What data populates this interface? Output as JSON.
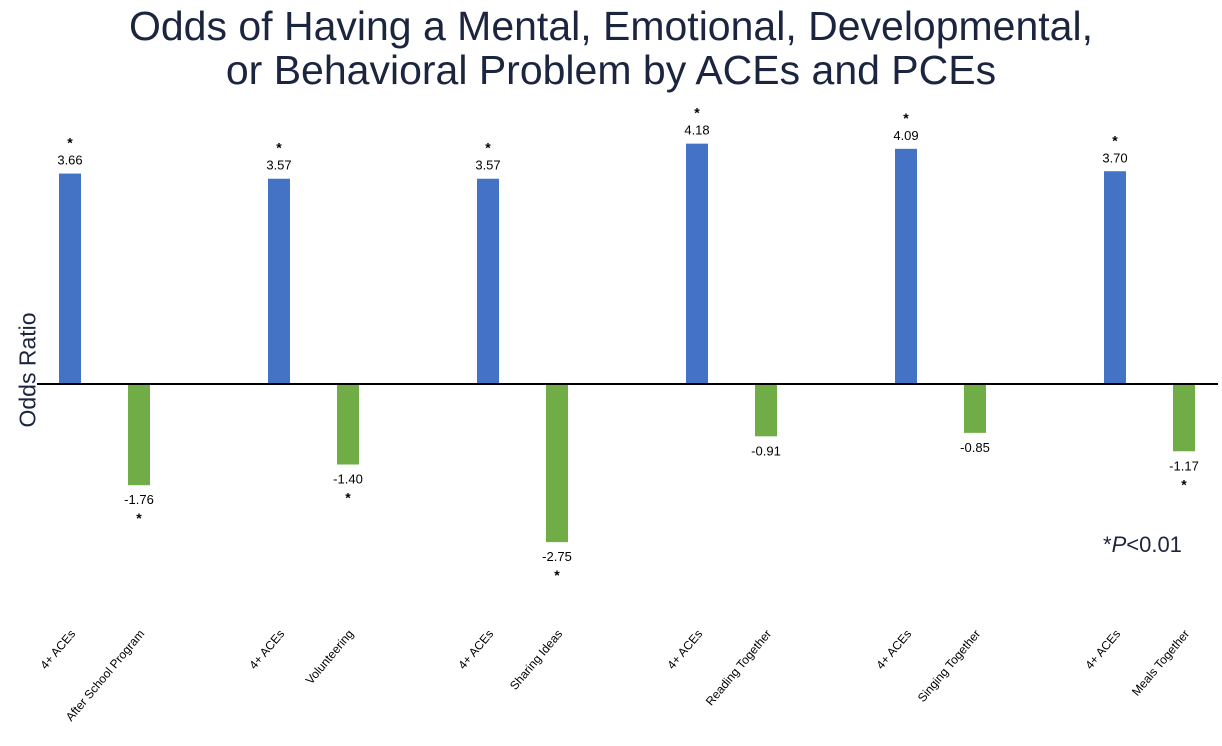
{
  "title": {
    "line1": "Odds of Having a Mental, Emotional, Developmental,",
    "line2": "or Behavioral Problem by ACEs and PCEs"
  },
  "ylabel": "Odds Ratio",
  "significance_note": {
    "prefix": "*",
    "italic": "P",
    "suffix": "<0.01"
  },
  "colors": {
    "aces": "#4472c4",
    "pces": "#70ad47",
    "axis": "#000000",
    "text": "#1b2540"
  },
  "chart_data": {
    "type": "bar",
    "categories": [
      "4+ ACEs",
      "After School Program",
      "4+ ACEs",
      "Volunteering",
      "4+ ACEs",
      "Sharing Ideas",
      "4+ ACEs",
      "Reading Together",
      "4+ ACEs",
      "Singing Together",
      "4+ ACEs",
      "Meals Together"
    ],
    "values": [
      3.66,
      -1.76,
      3.57,
      -1.4,
      3.57,
      -2.75,
      4.18,
      -0.91,
      4.09,
      -0.85,
      3.7,
      -1.17
    ],
    "labels": [
      "3.66",
      "-1.76",
      "3.57",
      "-1.40",
      "3.57",
      "-2.75",
      "4.18",
      "-0.91",
      "4.09",
      "-0.85",
      "3.70",
      "-1.17"
    ],
    "significant": [
      true,
      true,
      true,
      true,
      true,
      true,
      true,
      false,
      true,
      false,
      true,
      true
    ],
    "bar_color_group": [
      "aces",
      "pces",
      "aces",
      "pces",
      "aces",
      "pces",
      "aces",
      "pces",
      "aces",
      "pces",
      "aces",
      "pces"
    ],
    "significance_marker": "*",
    "ylabel": "Odds Ratio",
    "ylim": [
      -3.5,
      4.6
    ],
    "grid": false,
    "legend": "none"
  }
}
